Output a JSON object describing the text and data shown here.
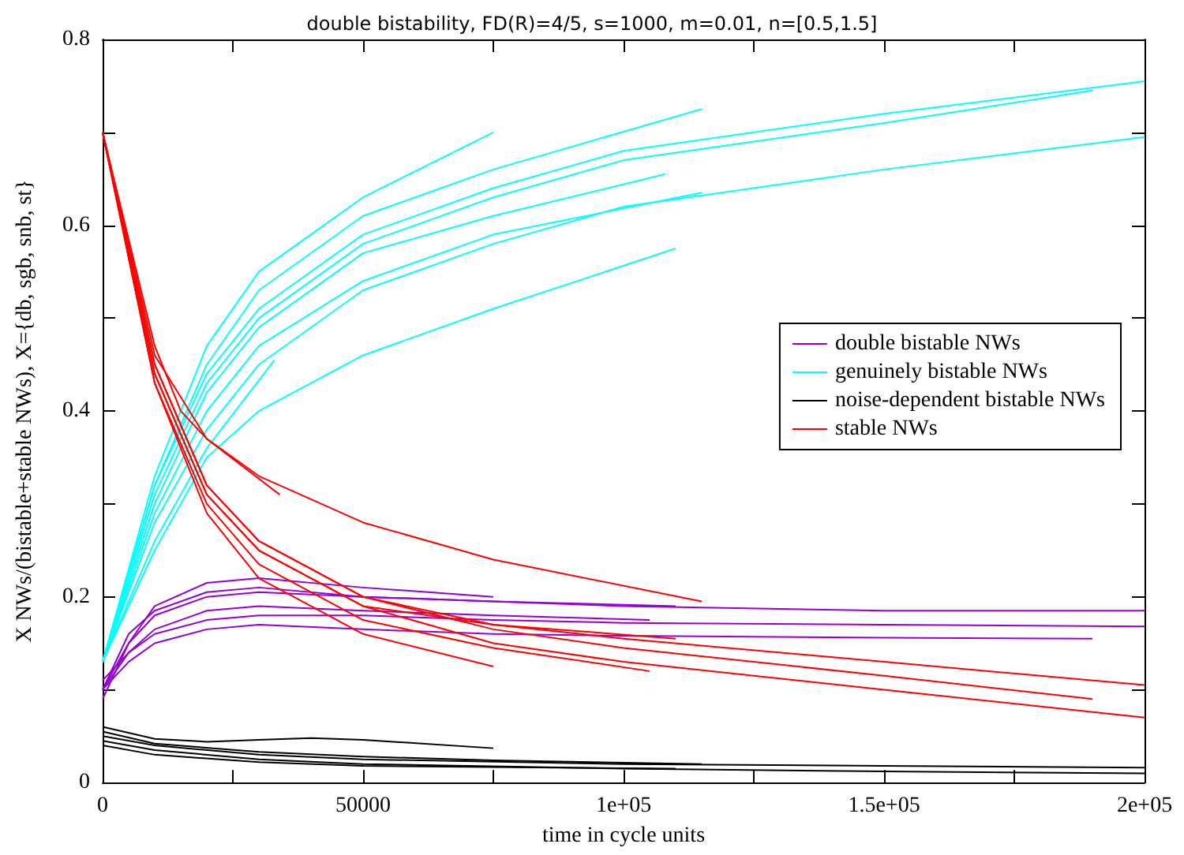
{
  "chart_data": {
    "type": "line",
    "title": "double bistability, FD(R)=4/5, s=1000, m=0.01, n=[0.5,1.5]",
    "xlabel": "time in cycle units",
    "ylabel": "X NWs/(bistable+stable NWs), X={db, sgb, snb, st}",
    "xlim": [
      0,
      200000
    ],
    "ylim": [
      0,
      0.8
    ],
    "xticks": [
      0,
      {
        "value": 25000,
        "label": null
      },
      50000,
      {
        "value": 75000,
        "label": null
      },
      {
        "value": 100000,
        "label": "1e+05"
      },
      {
        "value": 125000,
        "label": null
      },
      {
        "value": 150000,
        "label": "1.5e+05"
      },
      {
        "value": 175000,
        "label": null
      },
      {
        "value": 200000,
        "label": "2e+05"
      }
    ],
    "yticks": [
      0,
      {
        "value": 0.1,
        "label": null
      },
      0.2,
      {
        "value": 0.3,
        "label": null
      },
      0.4,
      {
        "value": 0.5,
        "label": null
      },
      0.6,
      {
        "value": 0.7,
        "label": null
      },
      0.8
    ],
    "legend": "right",
    "marker": "none",
    "line_style": "solid",
    "series": [
      {
        "name": "double bistable NWs",
        "color": "#9400d3",
        "x": [
          0,
          5000,
          10000,
          20000,
          30000,
          50000,
          75000,
          100000,
          150000,
          200000
        ],
        "values": [
          0.1,
          0.15,
          0.18,
          0.2,
          0.205,
          0.2,
          0.195,
          0.19,
          0.185,
          0.185
        ]
      },
      {
        "color": "#9400d3",
        "x": [
          0,
          5000,
          10000,
          20000,
          30000,
          50000,
          75000,
          100000,
          150000,
          200000
        ],
        "values": [
          0.1,
          0.14,
          0.16,
          0.175,
          0.18,
          0.18,
          0.175,
          0.172,
          0.17,
          0.168
        ]
      },
      {
        "color": "#9400d3",
        "x": [
          0,
          5000,
          10000,
          20000,
          30000,
          50000,
          75000,
          100000,
          150000,
          190000
        ],
        "values": [
          0.1,
          0.13,
          0.15,
          0.165,
          0.17,
          0.165,
          0.16,
          0.158,
          0.156,
          0.155
        ]
      },
      {
        "color": "#9400d3",
        "x": [
          0,
          5000,
          10000,
          20000,
          30000,
          50000,
          75000
        ],
        "values": [
          0.09,
          0.15,
          0.19,
          0.215,
          0.22,
          0.21,
          0.2
        ]
      },
      {
        "color": "#9400d3",
        "x": [
          0,
          5000,
          10000,
          20000,
          30000,
          50000,
          75000,
          110000
        ],
        "values": [
          0.1,
          0.16,
          0.185,
          0.205,
          0.21,
          0.2,
          0.195,
          0.19
        ]
      },
      {
        "color": "#9400d3",
        "x": [
          0,
          5000,
          10000,
          20000,
          30000,
          50000,
          75000,
          105000
        ],
        "values": [
          0.11,
          0.14,
          0.165,
          0.185,
          0.19,
          0.185,
          0.18,
          0.175
        ]
      },
      {
        "name": "genuinely bistable NWs",
        "color": "#00ffff",
        "x": [
          0,
          10000,
          20000,
          30000,
          50000,
          75000,
          100000,
          150000,
          200000
        ],
        "values": [
          0.13,
          0.32,
          0.44,
          0.51,
          0.59,
          0.64,
          0.68,
          0.72,
          0.755
        ]
      },
      {
        "color": "#00ffff",
        "x": [
          0,
          10000,
          20000,
          30000,
          50000,
          75000,
          100000,
          150000,
          190000
        ],
        "values": [
          0.13,
          0.31,
          0.43,
          0.5,
          0.58,
          0.63,
          0.67,
          0.71,
          0.745
        ]
      },
      {
        "color": "#00ffff",
        "x": [
          0,
          10000,
          20000,
          30000,
          50000,
          75000,
          100000,
          150000,
          200000
        ],
        "values": [
          0.13,
          0.28,
          0.38,
          0.45,
          0.53,
          0.58,
          0.62,
          0.66,
          0.695
        ]
      },
      {
        "color": "#00ffff",
        "x": [
          0,
          10000,
          20000,
          30000,
          50000,
          75000,
          110000
        ],
        "values": [
          0.13,
          0.25,
          0.35,
          0.4,
          0.46,
          0.51,
          0.575
        ]
      },
      {
        "color": "#00ffff",
        "x": [
          0,
          10000,
          20000,
          30000,
          50000,
          75000
        ],
        "values": [
          0.13,
          0.33,
          0.47,
          0.55,
          0.63,
          0.7
        ]
      },
      {
        "color": "#00ffff",
        "x": [
          0,
          10000,
          20000,
          30000,
          50000,
          75000,
          115000
        ],
        "values": [
          0.13,
          0.32,
          0.45,
          0.53,
          0.61,
          0.66,
          0.725
        ]
      },
      {
        "color": "#00ffff",
        "x": [
          0,
          10000,
          20000,
          33000
        ],
        "values": [
          0.13,
          0.26,
          0.36,
          0.455
        ]
      },
      {
        "color": "#00ffff",
        "x": [
          0,
          10000,
          20000,
          30000,
          50000,
          75000,
          108000
        ],
        "values": [
          0.13,
          0.3,
          0.42,
          0.49,
          0.57,
          0.61,
          0.655
        ]
      },
      {
        "color": "#00ffff",
        "x": [
          0,
          10000,
          20000,
          30000,
          50000,
          75000,
          115000
        ],
        "values": [
          0.13,
          0.29,
          0.4,
          0.47,
          0.54,
          0.59,
          0.635
        ]
      },
      {
        "name": "noise-dependent bistable NWs",
        "color": "#000000",
        "x": [
          0,
          10000,
          30000,
          50000,
          100000,
          150000,
          200000
        ],
        "values": [
          0.05,
          0.04,
          0.03,
          0.025,
          0.02,
          0.018,
          0.016
        ]
      },
      {
        "color": "#000000",
        "x": [
          0,
          10000,
          30000,
          50000,
          100000,
          150000,
          200000
        ],
        "values": [
          0.045,
          0.035,
          0.025,
          0.02,
          0.015,
          0.012,
          0.01
        ]
      },
      {
        "color": "#000000",
        "x": [
          0,
          10000,
          20000,
          30000,
          40000,
          50000,
          75000
        ],
        "values": [
          0.06,
          0.047,
          0.044,
          0.046,
          0.048,
          0.046,
          0.037
        ]
      },
      {
        "color": "#000000",
        "x": [
          0,
          10000,
          30000,
          50000,
          75000,
          115000
        ],
        "values": [
          0.055,
          0.042,
          0.033,
          0.028,
          0.024,
          0.02
        ]
      },
      {
        "color": "#000000",
        "x": [
          0,
          10000,
          30000,
          50000,
          110000
        ],
        "values": [
          0.04,
          0.03,
          0.022,
          0.018,
          0.015
        ]
      },
      {
        "name": "stable NWs",
        "color": "#ff0000",
        "x": [
          0,
          10000,
          20000,
          30000,
          50000,
          75000,
          100000,
          150000,
          200000
        ],
        "values": [
          0.7,
          0.45,
          0.32,
          0.26,
          0.2,
          0.17,
          0.155,
          0.13,
          0.105
        ]
      },
      {
        "color": "#ff0000",
        "x": [
          0,
          10000,
          20000,
          30000,
          50000,
          75000,
          100000,
          150000,
          200000
        ],
        "values": [
          0.7,
          0.44,
          0.31,
          0.25,
          0.19,
          0.15,
          0.13,
          0.1,
          0.07
        ]
      },
      {
        "color": "#ff0000",
        "x": [
          0,
          10000,
          20000,
          30000,
          50000,
          75000,
          100000,
          150000,
          190000
        ],
        "values": [
          0.7,
          0.45,
          0.32,
          0.26,
          0.2,
          0.165,
          0.145,
          0.115,
          0.09
        ]
      },
      {
        "color": "#ff0000",
        "x": [
          0,
          10000,
          15000,
          20000,
          30000,
          50000,
          75000,
          115000
        ],
        "values": [
          0.7,
          0.47,
          0.4,
          0.37,
          0.33,
          0.28,
          0.24,
          0.195
        ]
      },
      {
        "color": "#ff0000",
        "x": [
          0,
          10000,
          20000,
          34000
        ],
        "values": [
          0.7,
          0.46,
          0.37,
          0.31
        ]
      },
      {
        "color": "#ff0000",
        "x": [
          0,
          10000,
          20000,
          30000,
          50000,
          75000
        ],
        "values": [
          0.7,
          0.43,
          0.29,
          0.22,
          0.16,
          0.125
        ]
      },
      {
        "color": "#ff0000",
        "x": [
          0,
          10000,
          20000,
          30000,
          50000,
          75000,
          110000
        ],
        "values": [
          0.7,
          0.44,
          0.31,
          0.25,
          0.19,
          0.17,
          0.155
        ]
      },
      {
        "color": "#ff0000",
        "x": [
          0,
          10000,
          20000,
          30000,
          50000,
          75000,
          105000
        ],
        "values": [
          0.7,
          0.43,
          0.3,
          0.235,
          0.175,
          0.145,
          0.12
        ]
      }
    ]
  }
}
